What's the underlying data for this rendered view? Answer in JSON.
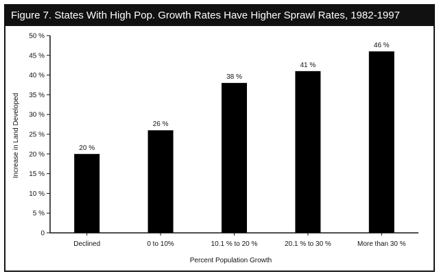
{
  "chart_data": {
    "type": "bar",
    "title": "Figure 7. States With High Pop. Growth Rates Have Higher Sprawl Rates, 1982-1997",
    "xlabel": "Percent Population Growth",
    "ylabel": "Increase in Land Developed",
    "categories": [
      "Declined",
      "0 to 10%",
      "10.1 % to 20 %",
      "20.1 % to 30 %",
      "More than 30 %"
    ],
    "values": [
      20,
      26,
      38,
      41,
      46
    ],
    "data_labels": [
      "20 %",
      "26 %",
      "38 %",
      "41 %",
      "46 %"
    ],
    "ylim": [
      0,
      50
    ],
    "yticks": [
      0,
      5,
      10,
      15,
      20,
      25,
      30,
      35,
      40,
      45,
      50
    ],
    "ytick_labels": [
      "0",
      "5 %",
      "10 %",
      "15 %",
      "20 %",
      "25 %",
      "30 %",
      "35 %",
      "40 %",
      "45 %",
      "50 %"
    ],
    "grid": false,
    "bar_color": "#000000"
  }
}
